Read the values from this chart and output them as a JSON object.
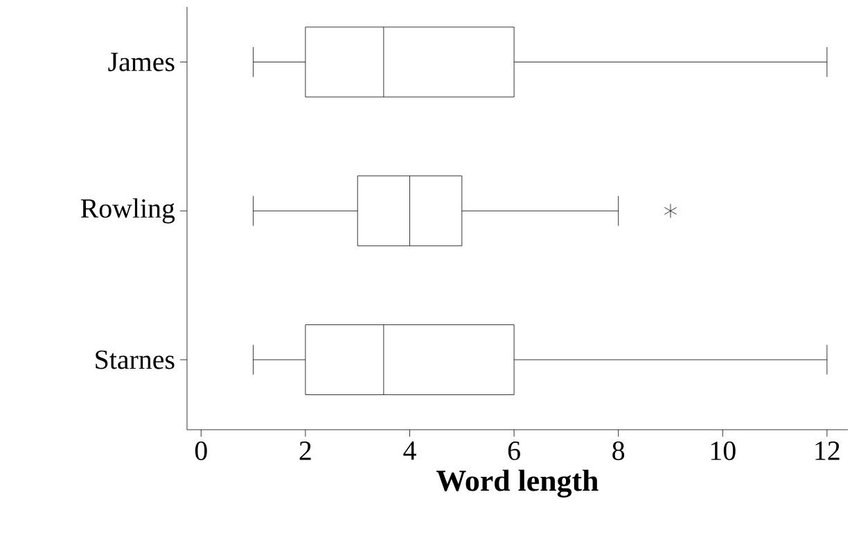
{
  "chart_data": {
    "type": "box",
    "orientation": "horizontal",
    "categories": [
      "James",
      "Rowling",
      "Starnes"
    ],
    "boxes": [
      {
        "low": 1,
        "q1": 2,
        "median": 3.5,
        "q3": 6,
        "high": 12
      },
      {
        "low": 1,
        "q1": 3,
        "median": 4,
        "q3": 5,
        "high": 8,
        "outliers": [
          9
        ]
      },
      {
        "low": 1,
        "q1": 2,
        "median": 3.5,
        "q3": 6,
        "high": 12
      }
    ],
    "xlabel": "Word length",
    "xlim": [
      -0.27,
      12.4
    ],
    "xticks": [
      0,
      2,
      4,
      6,
      8,
      10,
      12
    ]
  }
}
